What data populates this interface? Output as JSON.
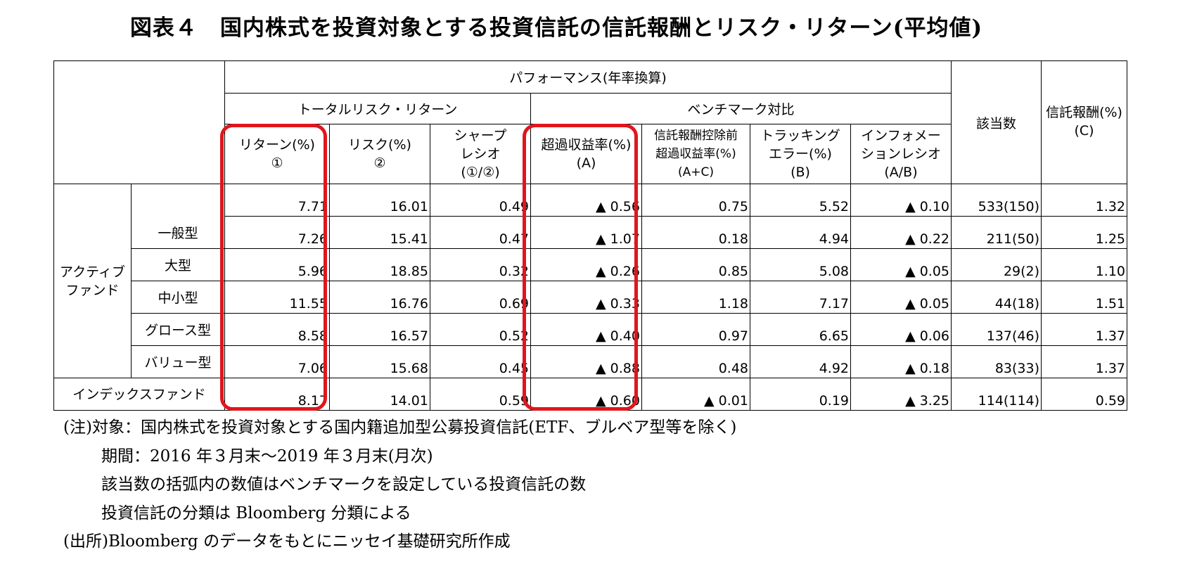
{
  "title": "図表４　国内株式を投資対象とする投資信託の信託報酬とリスク・リターン(平均値)",
  "headers": {
    "performance": "パフォーマンス(年率換算)",
    "total": "トータルリスク・リターン",
    "benchmark": "ベンチマーク対比",
    "count": "該当数",
    "fee_line1": "信託報酬(%)",
    "fee_line2": "(C)",
    "ret_line1": "リターン(%)",
    "ret_line2": "①",
    "risk_line1": "リスク(%)",
    "risk_line2": "②",
    "sharpe_line1": "シャープ",
    "sharpe_line2": "レシオ",
    "sharpe_line3": "(①/②)",
    "excess_line1": "超過収益率(%)",
    "excess_line2": "(A)",
    "prefee_line1": "信託報酬控除前",
    "prefee_line2": "超過収益率(%)",
    "prefee_line3": "(A+C)",
    "te_line1": "トラッキング",
    "te_line2": "エラー(%)",
    "te_line3": "(B)",
    "ir_line1": "インフォメー",
    "ir_line2": "ションレシオ",
    "ir_line3": "(A/B)"
  },
  "group_active_line1": "アクティブ",
  "group_active_line2": "ファンド",
  "rows": [
    {
      "label": "",
      "ret": "7.71",
      "risk": "16.01",
      "sharpe": "0.49",
      "excess": "▲ 0.56",
      "prefee": "0.75",
      "te": "5.52",
      "ir": "▲ 0.10",
      "count": "533(150)",
      "fee": "1.32"
    },
    {
      "label": "一般型",
      "ret": "7.26",
      "risk": "15.41",
      "sharpe": "0.47",
      "excess": "▲ 1.07",
      "prefee": "0.18",
      "te": "4.94",
      "ir": "▲ 0.22",
      "count": "211(50)",
      "fee": "1.25"
    },
    {
      "label": "大型",
      "ret": "5.96",
      "risk": "18.85",
      "sharpe": "0.32",
      "excess": "▲ 0.26",
      "prefee": "0.85",
      "te": "5.08",
      "ir": "▲ 0.05",
      "count": "29(2)",
      "fee": "1.10"
    },
    {
      "label": "中小型",
      "ret": "11.55",
      "risk": "16.76",
      "sharpe": "0.69",
      "excess": "▲ 0.33",
      "prefee": "1.18",
      "te": "7.17",
      "ir": "▲ 0.05",
      "count": "44(18)",
      "fee": "1.51"
    },
    {
      "label": "グロース型",
      "ret": "8.58",
      "risk": "16.57",
      "sharpe": "0.52",
      "excess": "▲ 0.40",
      "prefee": "0.97",
      "te": "6.65",
      "ir": "▲ 0.06",
      "count": "137(46)",
      "fee": "1.37"
    },
    {
      "label": "バリュー型",
      "ret": "7.06",
      "risk": "15.68",
      "sharpe": "0.45",
      "excess": "▲ 0.88",
      "prefee": "0.48",
      "te": "4.92",
      "ir": "▲ 0.18",
      "count": "83(33)",
      "fee": "1.37"
    },
    {
      "label": "インデックスファンド",
      "ret": "8.17",
      "risk": "14.01",
      "sharpe": "0.59",
      "excess": "▲ 0.60",
      "prefee": "▲ 0.01",
      "te": "0.19",
      "ir": "▲ 3.25",
      "count": "114(114)",
      "fee": "0.59"
    }
  ],
  "notes": [
    "(注)対象：国内株式を投資対象とする国内籍追加型公募投資信託(ETF、ブルベア型等を除く)",
    "期間：2016 年３月末～2019 年３月末(月次)",
    "該当数の括弧内の数値はベンチマークを設定している投資信託の数",
    "投資信託の分類は Bloomberg 分類による",
    "(出所)Bloomberg のデータをもとにニッセイ基礎研究所作成"
  ],
  "highlight_color": "#e0161c"
}
